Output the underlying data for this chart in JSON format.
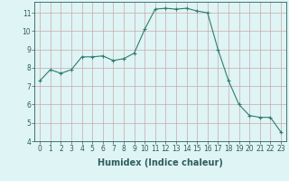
{
  "x": [
    0,
    1,
    2,
    3,
    4,
    5,
    6,
    7,
    8,
    9,
    10,
    11,
    12,
    13,
    14,
    15,
    16,
    17,
    18,
    19,
    20,
    21,
    22,
    23
  ],
  "y": [
    7.3,
    7.9,
    7.7,
    7.9,
    8.6,
    8.6,
    8.65,
    8.4,
    8.5,
    8.8,
    10.1,
    11.2,
    11.25,
    11.2,
    11.25,
    11.1,
    11.0,
    9.0,
    7.3,
    6.0,
    5.4,
    5.3,
    5.3,
    4.5
  ],
  "line_color": "#2e7d6e",
  "marker": "+",
  "marker_size": 3,
  "bg_color": "#dff4f4",
  "grid_color": "#c8a8a8",
  "xlabel": "Humidex (Indice chaleur)",
  "ylim": [
    4,
    11.6
  ],
  "xlim": [
    -0.5,
    23.5
  ],
  "yticks": [
    4,
    5,
    6,
    7,
    8,
    9,
    10,
    11
  ],
  "xticks": [
    0,
    1,
    2,
    3,
    4,
    5,
    6,
    7,
    8,
    9,
    10,
    11,
    12,
    13,
    14,
    15,
    16,
    17,
    18,
    19,
    20,
    21,
    22,
    23
  ],
  "tick_label_fontsize": 5.5,
  "xlabel_fontsize": 7,
  "tick_color": "#2e5d5d",
  "spine_color": "#2e5d5d",
  "linewidth": 0.8,
  "marker_linewidth": 0.8
}
